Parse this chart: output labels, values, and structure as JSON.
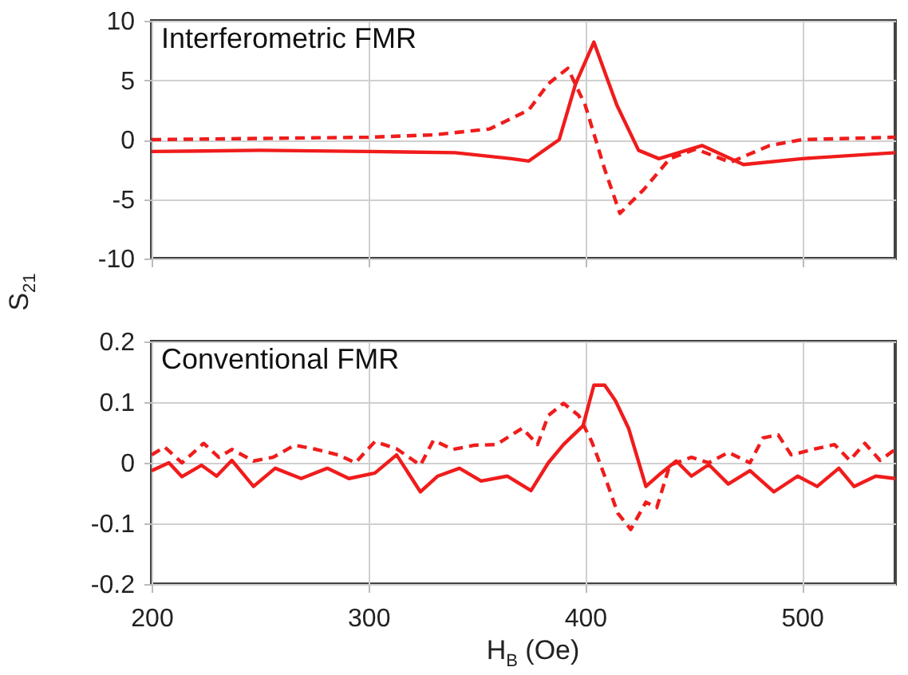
{
  "chart_data": [
    {
      "type": "line",
      "title": "Interferometric FMR",
      "ylabel": "S$_{21}$",
      "xlim": [
        200,
        543
      ],
      "xticks": [
        200,
        300,
        400,
        500
      ],
      "ylim": [
        -10,
        10
      ],
      "yticks": [
        -10,
        -5,
        0,
        5,
        10
      ],
      "grid": true,
      "tick_labels": "y",
      "series": [
        {
          "color": "#f01c1c",
          "line_style": "solid",
          "x": [
            200,
            250,
            300,
            340,
            366,
            374,
            388,
            395.6,
            404,
            414.6,
            424.6,
            434,
            454,
            473,
            500,
            543
          ],
          "values": [
            -1,
            -0.9,
            -1,
            -1.1,
            -1.6,
            -1.8,
            0,
            4.7,
            8.2,
            2.9,
            -0.9,
            -1.6,
            -0.5,
            -2.1,
            -1.6,
            -1.1
          ]
        },
        {
          "color": "#f01c1c",
          "line_style": "dashed",
          "x": [
            200,
            250,
            300,
            330,
            356,
            374,
            383,
            392,
            400,
            409,
            416,
            427,
            439,
            451,
            467,
            485,
            500,
            543
          ],
          "values": [
            0,
            0.1,
            0.2,
            0.4,
            0.9,
            2.5,
            4.7,
            6,
            2.9,
            -2.5,
            -6.2,
            -4.2,
            -1.6,
            -0.8,
            -1.9,
            -0.5,
            0,
            0.2
          ]
        }
      ]
    },
    {
      "type": "line",
      "title": "Conventional FMR",
      "xlabel": "H$_{B}$ (Oe)",
      "xlim": [
        200,
        543
      ],
      "xticks": [
        200,
        300,
        400,
        500
      ],
      "ylim": [
        -0.2,
        0.2
      ],
      "yticks": [
        -0.2,
        -0.1,
        0,
        0.1,
        0.2
      ],
      "grid": true,
      "series": [
        {
          "color": "#f01c1c",
          "line_style": "solid",
          "x": [
            200,
            208,
            214,
            223,
            230,
            237,
            247,
            257,
            269,
            281,
            291,
            303,
            313,
            324,
            332,
            342,
            352,
            364,
            375,
            383,
            390,
            399,
            404,
            409,
            414,
            420,
            428,
            435,
            442,
            449,
            457,
            466,
            476,
            487,
            498,
            507,
            517,
            524,
            534,
            543
          ],
          "values": [
            -0.013,
            0,
            -0.023,
            -0.004,
            -0.022,
            0.004,
            -0.039,
            -0.009,
            -0.026,
            -0.009,
            -0.026,
            -0.017,
            0.013,
            -0.048,
            -0.022,
            -0.009,
            -0.03,
            -0.022,
            -0.046,
            0,
            0.03,
            0.061,
            0.128,
            0.128,
            0.102,
            0.057,
            -0.039,
            -0.017,
            0.003,
            -0.022,
            -0.003,
            -0.035,
            -0.013,
            -0.048,
            -0.022,
            -0.039,
            -0.009,
            -0.039,
            -0.022,
            -0.026
          ]
        },
        {
          "color": "#f01c1c",
          "line_style": "dashed",
          "x": [
            200,
            206,
            214,
            224,
            231,
            237,
            247,
            256,
            266,
            276,
            286,
            294,
            303,
            313,
            324,
            330,
            339,
            349,
            359,
            371,
            378,
            383,
            390,
            397,
            403,
            409,
            415,
            421,
            428,
            433,
            439,
            449,
            457,
            466,
            476,
            482,
            489,
            495,
            505,
            515,
            522,
            529,
            536,
            543
          ],
          "values": [
            0.013,
            0.026,
            0,
            0.032,
            0.009,
            0.022,
            0.003,
            0.009,
            0.029,
            0.022,
            0.013,
            0,
            0.035,
            0.023,
            -0.004,
            0.037,
            0.022,
            0.029,
            0.03,
            0.057,
            0.03,
            0.078,
            0.098,
            0.078,
            0.035,
            -0.022,
            -0.083,
            -0.11,
            -0.065,
            -0.074,
            -0.004,
            0.009,
            0,
            0.017,
            0,
            0.041,
            0.046,
            0.013,
            0.022,
            0.03,
            0.004,
            0.032,
            0.004,
            0.022
          ]
        }
      ]
    }
  ]
}
